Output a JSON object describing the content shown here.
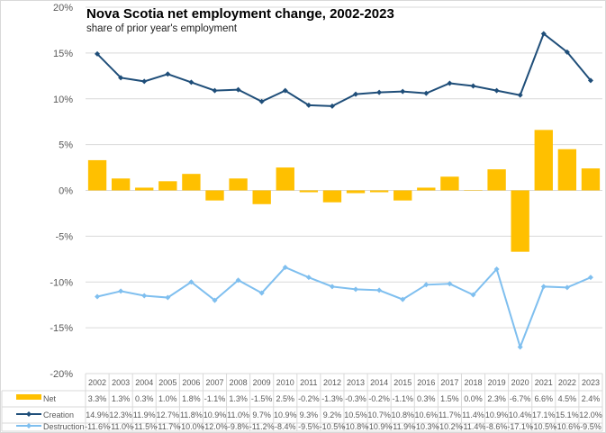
{
  "chart_data": {
    "type": "bar+line",
    "title": "Nova Scotia net employment change, 2002-2023",
    "subtitle": "share of prior year's employment",
    "xlabel": "",
    "ylabel": "",
    "ylim": [
      -20,
      20
    ],
    "yticks": [
      20,
      15,
      10,
      5,
      0,
      -5,
      -10,
      -15,
      -20
    ],
    "ytick_labels": [
      "20%",
      "15%",
      "10%",
      "5%",
      "0%",
      "-5%",
      "-10%",
      "-15%",
      "-20%"
    ],
    "grid": true,
    "legend": "data-table-bottom",
    "categories": [
      "2002",
      "2003",
      "2004",
      "2005",
      "2006",
      "2007",
      "2008",
      "2009",
      "2010",
      "2011",
      "2012",
      "2013",
      "2014",
      "2015",
      "2016",
      "2017",
      "2018",
      "2019",
      "2020",
      "2021",
      "2022",
      "2023"
    ],
    "series": [
      {
        "name": "Net",
        "type": "bar",
        "color": "#ffc000",
        "values": [
          3.3,
          1.3,
          0.3,
          1.0,
          1.8,
          -1.1,
          1.3,
          -1.5,
          2.5,
          -0.2,
          -1.3,
          -0.3,
          -0.2,
          -1.1,
          0.3,
          1.5,
          0.0,
          2.3,
          -6.7,
          6.6,
          4.5,
          2.4
        ]
      },
      {
        "name": "Creation",
        "type": "line",
        "color": "#1f4e79",
        "values": [
          14.9,
          12.3,
          11.9,
          12.7,
          11.8,
          10.9,
          11.0,
          9.7,
          10.9,
          9.3,
          9.2,
          10.5,
          10.7,
          10.8,
          10.6,
          11.7,
          11.4,
          10.9,
          10.4,
          17.1,
          15.1,
          12.0
        ]
      },
      {
        "name": "Destruction",
        "type": "line",
        "color": "#7fbfef",
        "values": [
          -11.6,
          -11.0,
          -11.5,
          -11.7,
          -10.0,
          -12.0,
          -9.8,
          -11.2,
          -8.4,
          -9.5,
          -10.5,
          -10.8,
          -10.9,
          -11.9,
          -10.3,
          -10.2,
          -11.4,
          -8.6,
          -17.1,
          -10.5,
          -10.6,
          -9.5
        ]
      }
    ]
  }
}
